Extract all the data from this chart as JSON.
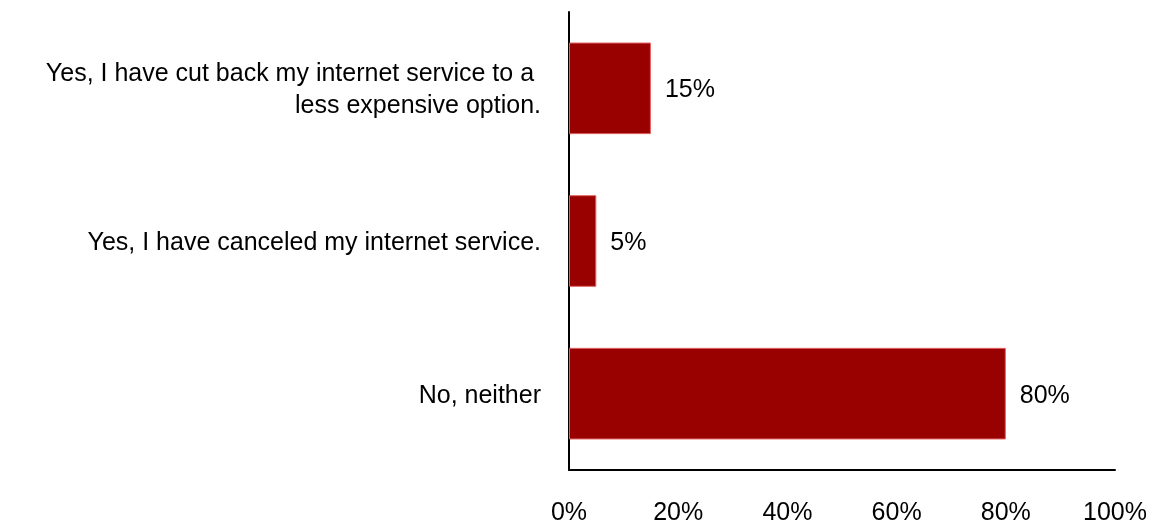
{
  "chart_data": {
    "type": "bar",
    "orientation": "horizontal",
    "categories": [
      "Yes, I have cut back my internet service to a less expensive option.",
      "Yes, I have canceled my internet service.",
      "No, neither"
    ],
    "values": [
      15,
      5,
      80
    ],
    "color": "#990000",
    "value_labels": [
      "15%",
      "5%",
      "80%"
    ],
    "xlim": [
      0,
      100
    ],
    "xticks": [
      {
        "value": 0,
        "label": "0%"
      },
      {
        "value": 20,
        "label": "20%"
      },
      {
        "value": 40,
        "label": "40%"
      },
      {
        "value": 60,
        "label": "60%"
      },
      {
        "value": 80,
        "label": "80%"
      },
      {
        "value": 100,
        "label": "100%"
      }
    ],
    "grid": false
  }
}
